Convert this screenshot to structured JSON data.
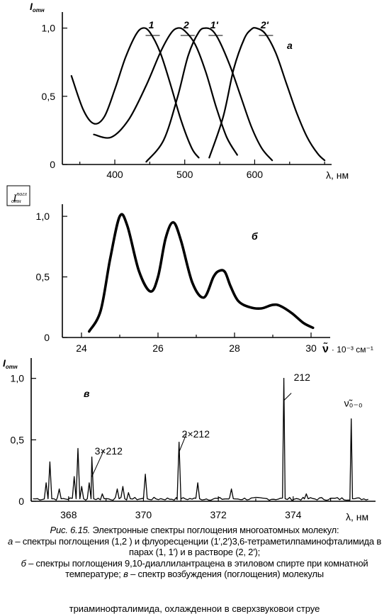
{
  "panels": {
    "a": {
      "letter": "а",
      "ylabel_main": "I",
      "ylabel_sub": "отн",
      "xlabel": "λ, нм",
      "xticks": [
        "400",
        "500",
        "600"
      ],
      "yticks": [
        "0",
        "0,5",
        "1,0"
      ]
    },
    "b": {
      "letter": "б",
      "ylabel_main": "I",
      "ylabel_sub": "отн",
      "ylabel_sup": "погл",
      "xlabel_symbol": "ν̃",
      "xlabel_rest": "· 10⁻³ см⁻¹",
      "xticks": [
        "24",
        "26",
        "28",
        "30"
      ],
      "yticks": [
        "0",
        "0,5",
        "1,0"
      ]
    },
    "c": {
      "letter": "в",
      "ylabel_main": "I",
      "ylabel_sub": "отн",
      "xlabel": "λ, нм",
      "xticks": [
        "368",
        "370",
        "372",
        "374"
      ],
      "yticks": [
        "0",
        "0,5",
        "1,0"
      ],
      "annotations": [
        "3×212",
        "2×212",
        "212",
        "ν̃₀₋₀"
      ]
    }
  },
  "chart_data": [
    {
      "type": "line",
      "panel": "а",
      "xlabel": "λ, нм",
      "ylabel": "Iотн",
      "xlim": [
        325,
        710
      ],
      "ylim": [
        0,
        1.05
      ],
      "series": [
        {
          "name": "1",
          "x": [
            338,
            355,
            370,
            385,
            400,
            415,
            430,
            440,
            450,
            465,
            480,
            495,
            510,
            520
          ],
          "y": [
            0.65,
            0.4,
            0.3,
            0.35,
            0.55,
            0.78,
            0.95,
            1.0,
            0.97,
            0.82,
            0.58,
            0.32,
            0.12,
            0.05
          ]
        },
        {
          "name": "2",
          "x": [
            370,
            395,
            420,
            445,
            465,
            480,
            490,
            500,
            515,
            530,
            545,
            560,
            575
          ],
          "y": [
            0.22,
            0.2,
            0.33,
            0.58,
            0.82,
            0.96,
            1.0,
            0.98,
            0.88,
            0.68,
            0.42,
            0.2,
            0.07
          ]
        },
        {
          "name": "1'",
          "x": [
            445,
            470,
            490,
            505,
            520,
            530,
            540,
            550,
            565,
            580,
            595,
            610,
            625
          ],
          "y": [
            0.02,
            0.18,
            0.5,
            0.8,
            0.97,
            1.0,
            0.98,
            0.9,
            0.72,
            0.5,
            0.28,
            0.12,
            0.03
          ]
        },
        {
          "name": "2'",
          "x": [
            535,
            555,
            570,
            585,
            595,
            602,
            615,
            630,
            645,
            660,
            675,
            690,
            700
          ],
          "y": [
            0.05,
            0.35,
            0.7,
            0.92,
            0.99,
            1.0,
            0.96,
            0.82,
            0.6,
            0.38,
            0.2,
            0.08,
            0.03
          ]
        }
      ],
      "legend": [
        "1",
        "2",
        "1'",
        "2'"
      ]
    },
    {
      "type": "line",
      "panel": "б",
      "xlabel": "ν̃ · 10⁻³ см⁻¹",
      "ylabel": "Iотн погл",
      "xlim": [
        23.5,
        30.5
      ],
      "ylim": [
        0,
        1.1
      ],
      "series": [
        {
          "name": "",
          "x": [
            24.2,
            24.5,
            24.75,
            25.0,
            25.2,
            25.5,
            25.8,
            26.0,
            26.2,
            26.4,
            26.6,
            26.9,
            27.2,
            27.45,
            27.6,
            27.75,
            27.9,
            28.1,
            28.4,
            28.7,
            29.0,
            29.2,
            29.5,
            29.8,
            30.05
          ],
          "y": [
            0.05,
            0.22,
            0.65,
            1.0,
            0.92,
            0.55,
            0.38,
            0.5,
            0.82,
            0.95,
            0.8,
            0.45,
            0.33,
            0.5,
            0.55,
            0.54,
            0.42,
            0.3,
            0.25,
            0.24,
            0.27,
            0.26,
            0.2,
            0.12,
            0.08
          ]
        }
      ]
    },
    {
      "type": "line",
      "panel": "в",
      "xlabel": "λ, нм",
      "ylabel": "Iотн",
      "xlim": [
        367,
        376.2
      ],
      "ylim": [
        0,
        1.05
      ],
      "peaks": [
        {
          "x": 367.4,
          "y": 0.15
        },
        {
          "x": 367.5,
          "y": 0.32
        },
        {
          "x": 367.75,
          "y": 0.1
        },
        {
          "x": 368.15,
          "y": 0.2
        },
        {
          "x": 368.25,
          "y": 0.43
        },
        {
          "x": 368.35,
          "y": 0.12
        },
        {
          "x": 368.55,
          "y": 0.15
        },
        {
          "x": 368.62,
          "y": 0.36
        },
        {
          "x": 368.9,
          "y": 0.06
        },
        {
          "x": 369.3,
          "y": 0.1
        },
        {
          "x": 369.45,
          "y": 0.12
        },
        {
          "x": 369.6,
          "y": 0.07
        },
        {
          "x": 370.05,
          "y": 0.22
        },
        {
          "x": 370.95,
          "y": 0.48
        },
        {
          "x": 371.45,
          "y": 0.15
        },
        {
          "x": 372.35,
          "y": 0.1
        },
        {
          "x": 373.75,
          "y": 1.0
        },
        {
          "x": 374.35,
          "y": 0.06
        },
        {
          "x": 375.55,
          "y": 0.67
        }
      ],
      "annotations": [
        "3×212",
        "2×212",
        "212",
        "ν̃₀₋₀"
      ]
    }
  ],
  "caption": {
    "lead": "Рис. 6.15.",
    "text1": "Электронные спектры поглощения многоатомных молекул:",
    "letter_a": "а",
    "text2": "– спектры поглощения (1,2 ) и флуоресценции (1′,2′)3,6-тетраметилпаминофталимида в парах (1, 1′) и в растворе (2, 2′);",
    "letter_b": "б",
    "text3": "– спектры поглощения 9,10-диаллилантрацена в этиловом спирте при комнатной температуре;",
    "letter_c": "в",
    "text4": "– спектр возбуждения (поглощения) молекулы",
    "text5": "триаминофталимида, охлажденной в сверхзвуковой струе"
  }
}
